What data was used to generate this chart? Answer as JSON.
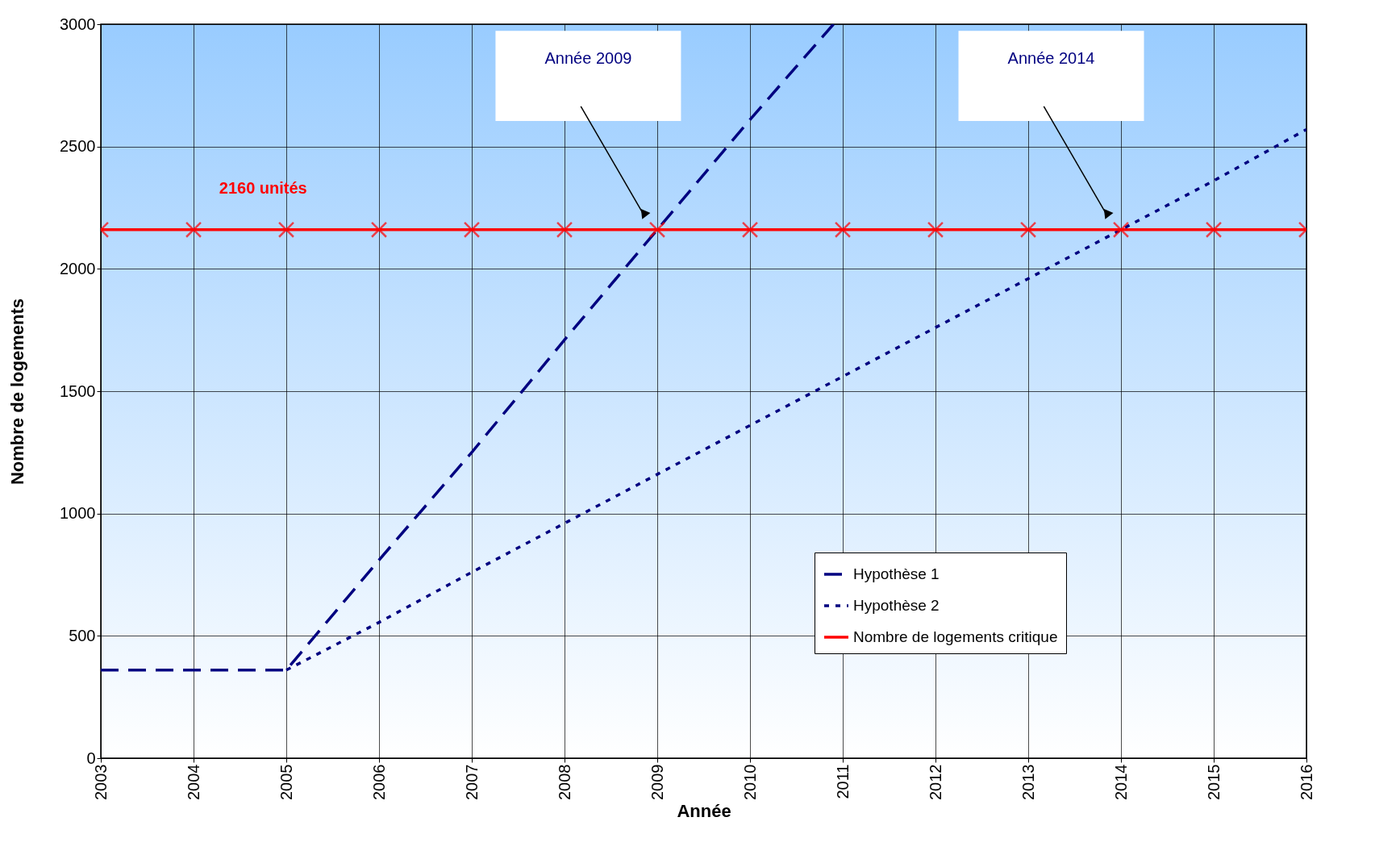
{
  "chart_data": {
    "type": "line",
    "xlabel": "Année",
    "ylabel": "Nombre de logements",
    "xlim": [
      2003,
      2016
    ],
    "xticks": [
      2003,
      2004,
      2005,
      2006,
      2007,
      2008,
      2009,
      2010,
      2011,
      2012,
      2013,
      2014,
      2015,
      2016
    ],
    "ylim": [
      0,
      3000
    ],
    "yticks": [
      0,
      500,
      1000,
      1500,
      2000,
      2500,
      3000
    ],
    "grid": true,
    "legend": "bottom right",
    "series": [
      {
        "name": "Hypothèse 1",
        "color": "#000080",
        "line_style": "dashed",
        "marker": "none",
        "x": [
          2003,
          2004,
          2005,
          2006,
          2007,
          2008,
          2009,
          2010,
          2010.9
        ],
        "values": [
          360,
          360,
          360,
          810,
          1250,
          1710,
          2160,
          2610,
          3000
        ]
      },
      {
        "name": "Hypothèse 2",
        "color": "#000080",
        "line_style": "dotted",
        "marker": "none",
        "x": [
          2005,
          2006,
          2007,
          2008,
          2009,
          2010,
          2011,
          2012,
          2013,
          2014,
          2015,
          2016
        ],
        "values": [
          360,
          555,
          760,
          960,
          1160,
          1360,
          1560,
          1760,
          1960,
          2160,
          2360,
          2570
        ]
      },
      {
        "name": "Nombre de logements critique",
        "color": "#ff0000",
        "line_style": "solid",
        "marker": "cross",
        "x": [
          2003,
          2004,
          2005,
          2006,
          2007,
          2008,
          2009,
          2010,
          2011,
          2012,
          2013,
          2014,
          2015,
          2016
        ],
        "values": [
          2160,
          2160,
          2160,
          2160,
          2160,
          2160,
          2160,
          2160,
          2160,
          2160,
          2160,
          2160,
          2160,
          2160
        ]
      }
    ],
    "annotations": [
      {
        "text": "2160 unités",
        "x": 2004.75,
        "y": 2160
      },
      "Année 2009",
      "Année 2014"
    ]
  }
}
